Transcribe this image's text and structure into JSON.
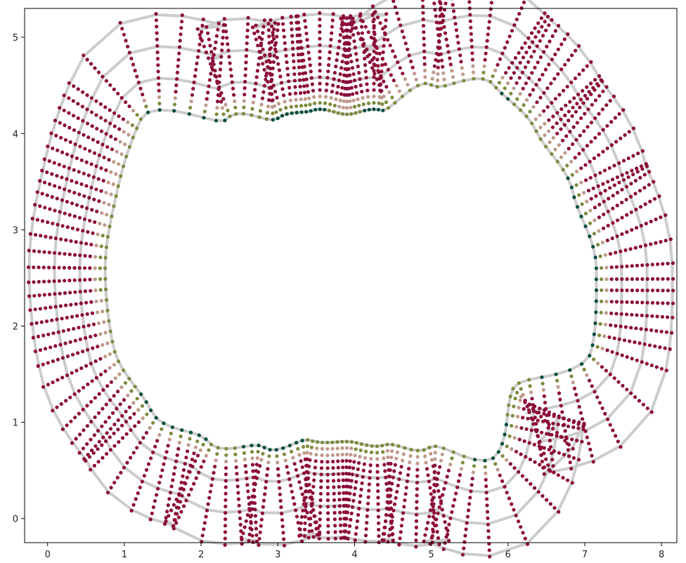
{
  "chart_data": {
    "type": "scatter",
    "title": "",
    "xlabel": "",
    "ylabel": "",
    "xlim": [
      -0.3,
      8.2
    ],
    "ylim": [
      -0.25,
      5.3
    ],
    "grid": false,
    "legend": "none",
    "x_ticks": [
      {
        "value": 0,
        "label": "0"
      },
      {
        "value": 1,
        "label": "1"
      },
      {
        "value": 2,
        "label": "2"
      },
      {
        "value": 3,
        "label": "3"
      },
      {
        "value": 4,
        "label": "4"
      },
      {
        "value": 5,
        "label": "5"
      },
      {
        "value": 6,
        "label": "6"
      },
      {
        "value": 7,
        "label": "7"
      },
      {
        "value": 8,
        "label": "8"
      }
    ],
    "y_ticks": [
      {
        "value": 0,
        "label": "0"
      },
      {
        "value": 1,
        "label": "1"
      },
      {
        "value": 2,
        "label": "2"
      },
      {
        "value": 3,
        "label": "3"
      },
      {
        "value": 4,
        "label": "4"
      },
      {
        "value": 5,
        "label": "5"
      }
    ],
    "center": [
      3.9,
      2.6
    ],
    "curve_offsets": [
      0.0,
      0.33,
      0.66,
      0.99
    ],
    "whisker_length": 1.0,
    "whisker_samples": 16,
    "inner_boundary": [
      {
        "angle": 0,
        "radius": 3.25
      },
      {
        "angle": 15,
        "radius": 3.05
      },
      {
        "angle": 30,
        "radius": 2.85
      },
      {
        "angle": 45,
        "radius": 2.7
      },
      {
        "angle": 60,
        "radius": 2.2
      },
      {
        "angle": 75,
        "radius": 1.7
      },
      {
        "angle": 90,
        "radius": 1.6
      },
      {
        "angle": 105,
        "radius": 1.7
      },
      {
        "angle": 120,
        "radius": 1.8
      },
      {
        "angle": 135,
        "radius": 2.2
      },
      {
        "angle": 150,
        "radius": 3.1
      },
      {
        "angle": 165,
        "radius": 3.1
      },
      {
        "angle": 180,
        "radius": 3.15
      },
      {
        "angle": 195,
        "radius": 3.15
      },
      {
        "angle": 210,
        "radius": 2.95
      },
      {
        "angle": 225,
        "radius": 2.55
      },
      {
        "angle": 240,
        "radius": 2.15
      },
      {
        "angle": 255,
        "radius": 1.85
      },
      {
        "angle": 270,
        "radius": 1.8
      },
      {
        "angle": 285,
        "radius": 1.9
      },
      {
        "angle": 300,
        "radius": 2.15
      },
      {
        "angle": 315,
        "radius": 2.75
      },
      {
        "angle": 330,
        "radius": 2.5
      },
      {
        "angle": 345,
        "radius": 3.3
      }
    ],
    "colors": {
      "outer": "#8b0a3a",
      "mid": "#c09a8c",
      "olive": "#7d8a3e",
      "inner": "#004d3c",
      "curve": "#cccccc",
      "axis": "#000000"
    }
  }
}
